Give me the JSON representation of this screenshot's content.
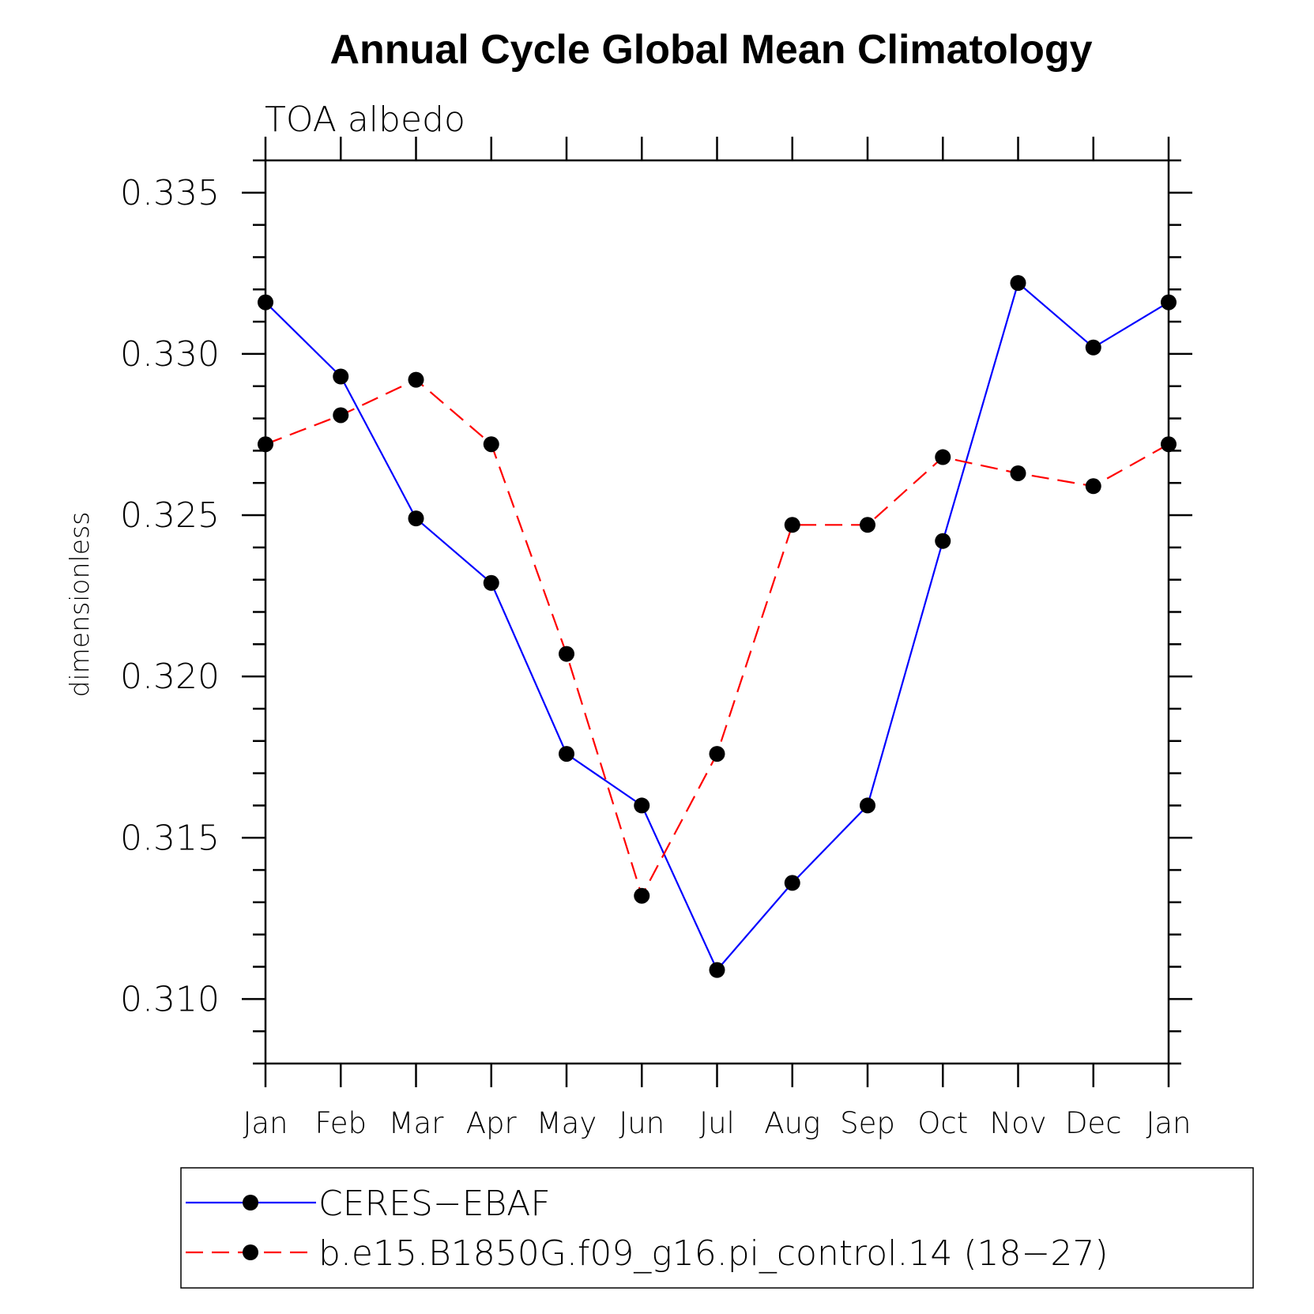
{
  "chart_data": {
    "type": "line",
    "title": "Annual Cycle Global Mean Climatology",
    "subtitle": "TOA albedo",
    "xlabel": "",
    "ylabel": "dimensionless",
    "categories": [
      "Jan",
      "Feb",
      "Mar",
      "Apr",
      "May",
      "Jun",
      "Jul",
      "Aug",
      "Sep",
      "Oct",
      "Nov",
      "Dec",
      "Jan"
    ],
    "ylim": [
      0.308,
      0.336
    ],
    "yticks": [
      0.31,
      0.315,
      0.32,
      0.325,
      0.33,
      0.335
    ],
    "ytick_labels": [
      "0.310",
      "0.315",
      "0.320",
      "0.325",
      "0.330",
      "0.335"
    ],
    "grid": false,
    "legend_position": "bottom",
    "series": [
      {
        "name": "CERES−EBAF",
        "color": "#0000ff",
        "line_style": "solid",
        "marker": "filled-circle",
        "values": [
          0.3316,
          0.3293,
          0.3249,
          0.3229,
          0.3176,
          0.316,
          0.3109,
          0.3136,
          0.316,
          0.3242,
          0.3322,
          0.3302,
          0.3316
        ]
      },
      {
        "name": "b.e15.B1850G.f09_g16.pi_control.14 (18−27)",
        "color": "#ff0000",
        "line_style": "dashed",
        "marker": "filled-circle",
        "values": [
          0.3272,
          0.3281,
          0.3292,
          0.3272,
          0.3207,
          0.3132,
          0.3176,
          0.3247,
          0.3247,
          0.3268,
          0.3263,
          0.3259,
          0.3272
        ]
      }
    ]
  }
}
